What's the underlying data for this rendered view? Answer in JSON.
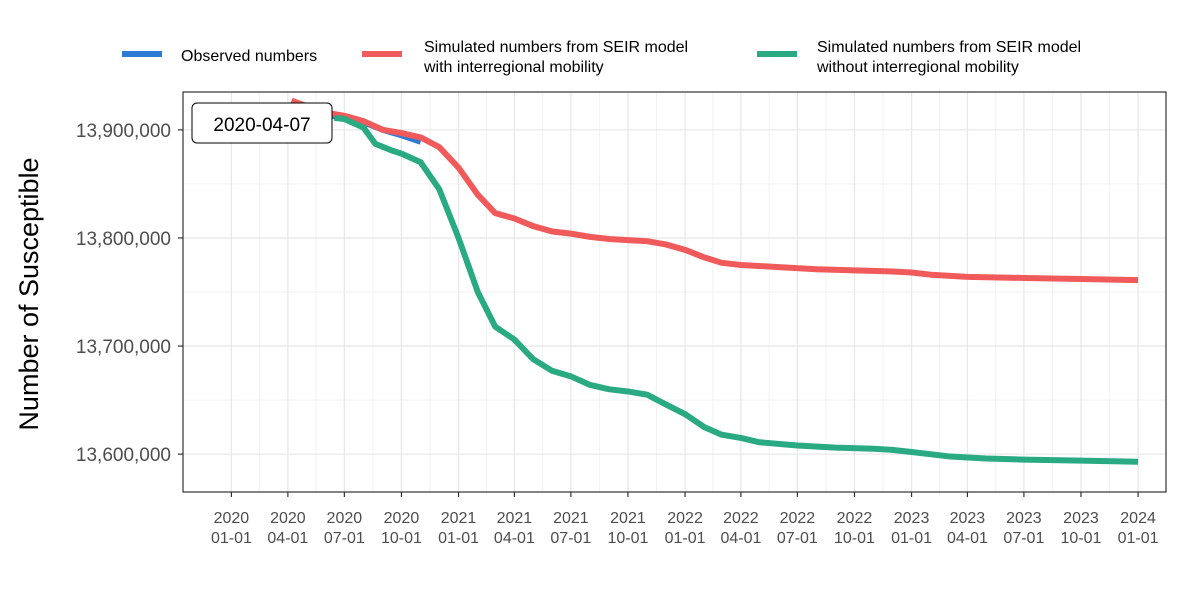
{
  "chart_data": {
    "type": "line",
    "title": "",
    "xlabel": "",
    "ylabel": "Number of Susceptible",
    "ylim": [
      13565000,
      13935000
    ],
    "xlim": [
      "2019-10-15",
      "2024-02-15"
    ],
    "grid": true,
    "legend_position": "top",
    "x_ticks": [
      {
        "date": "2020-01-01",
        "line1": "2020",
        "line2": "01-01"
      },
      {
        "date": "2020-04-01",
        "line1": "2020",
        "line2": "04-01"
      },
      {
        "date": "2020-07-01",
        "line1": "2020",
        "line2": "07-01"
      },
      {
        "date": "2020-10-01",
        "line1": "2020",
        "line2": "10-01"
      },
      {
        "date": "2021-01-01",
        "line1": "2021",
        "line2": "01-01"
      },
      {
        "date": "2021-04-01",
        "line1": "2021",
        "line2": "04-01"
      },
      {
        "date": "2021-07-01",
        "line1": "2021",
        "line2": "07-01"
      },
      {
        "date": "2021-10-01",
        "line1": "2021",
        "line2": "10-01"
      },
      {
        "date": "2022-01-01",
        "line1": "2022",
        "line2": "01-01"
      },
      {
        "date": "2022-04-01",
        "line1": "2022",
        "line2": "04-01"
      },
      {
        "date": "2022-07-01",
        "line1": "2022",
        "line2": "07-01"
      },
      {
        "date": "2022-10-01",
        "line1": "2022",
        "line2": "10-01"
      },
      {
        "date": "2023-01-01",
        "line1": "2023",
        "line2": "01-01"
      },
      {
        "date": "2023-04-01",
        "line1": "2023",
        "line2": "04-01"
      },
      {
        "date": "2023-07-01",
        "line1": "2023",
        "line2": "07-01"
      },
      {
        "date": "2023-10-01",
        "line1": "2023",
        "line2": "10-01"
      },
      {
        "date": "2024-01-01",
        "line1": "2024",
        "line2": "01-01"
      }
    ],
    "y_ticks": [
      {
        "value": 13600000,
        "label": "13,600,000"
      },
      {
        "value": 13700000,
        "label": "13,700,000"
      },
      {
        "value": 13800000,
        "label": "13,800,000"
      },
      {
        "value": 13900000,
        "label": "13,900,000"
      }
    ],
    "annotation": {
      "text": "2020-04-07",
      "date": "2020-04-07"
    },
    "series": [
      {
        "name": "Observed numbers",
        "color": "#2e7bd6",
        "points": [
          [
            "2020-04-07",
            13927000
          ],
          [
            "2020-05-01",
            13920000
          ],
          [
            "2020-06-01",
            13914000
          ],
          [
            "2020-07-01",
            13911000
          ],
          [
            "2020-08-01",
            13907000
          ],
          [
            "2020-09-01",
            13900000
          ],
          [
            "2020-10-01",
            13895000
          ],
          [
            "2020-11-01",
            13889000
          ]
        ]
      },
      {
        "name": "Simulated numbers from SEIR model\nwith interregional mobility",
        "color": "#f05a5a",
        "points": [
          [
            "2020-04-07",
            13927000
          ],
          [
            "2020-05-01",
            13922000
          ],
          [
            "2020-06-01",
            13916000
          ],
          [
            "2020-07-01",
            13913000
          ],
          [
            "2020-08-01",
            13908000
          ],
          [
            "2020-09-01",
            13900000
          ],
          [
            "2020-10-01",
            13897000
          ],
          [
            "2020-11-01",
            13893000
          ],
          [
            "2020-12-01",
            13884000
          ],
          [
            "2021-01-01",
            13865000
          ],
          [
            "2021-02-01",
            13840000
          ],
          [
            "2021-03-01",
            13823000
          ],
          [
            "2021-04-01",
            13818000
          ],
          [
            "2021-05-01",
            13811000
          ],
          [
            "2021-06-01",
            13806000
          ],
          [
            "2021-07-01",
            13804000
          ],
          [
            "2021-08-01",
            13801000
          ],
          [
            "2021-09-01",
            13799000
          ],
          [
            "2021-10-01",
            13798000
          ],
          [
            "2021-11-01",
            13797000
          ],
          [
            "2021-12-01",
            13794000
          ],
          [
            "2022-01-01",
            13789000
          ],
          [
            "2022-02-01",
            13782000
          ],
          [
            "2022-03-01",
            13777000
          ],
          [
            "2022-04-01",
            13775000
          ],
          [
            "2022-06-01",
            13773000
          ],
          [
            "2022-08-01",
            13771000
          ],
          [
            "2022-10-01",
            13770000
          ],
          [
            "2022-12-01",
            13769000
          ],
          [
            "2023-01-01",
            13768000
          ],
          [
            "2023-02-01",
            13766000
          ],
          [
            "2023-04-01",
            13764000
          ],
          [
            "2023-07-01",
            13763000
          ],
          [
            "2023-10-01",
            13762000
          ],
          [
            "2024-01-01",
            13761000
          ]
        ]
      },
      {
        "name": "Simulated numbers from SEIR model\nwithout interregional mobility",
        "color": "#2aaa82",
        "points": [
          [
            "2020-06-15",
            13911000
          ],
          [
            "2020-07-01",
            13910000
          ],
          [
            "2020-08-01",
            13902000
          ],
          [
            "2020-08-20",
            13887000
          ],
          [
            "2020-09-15",
            13881000
          ],
          [
            "2020-10-01",
            13878000
          ],
          [
            "2020-11-01",
            13870000
          ],
          [
            "2020-12-01",
            13845000
          ],
          [
            "2021-01-01",
            13800000
          ],
          [
            "2021-02-01",
            13750000
          ],
          [
            "2021-03-01",
            13718000
          ],
          [
            "2021-04-01",
            13706000
          ],
          [
            "2021-05-01",
            13688000
          ],
          [
            "2021-06-01",
            13677000
          ],
          [
            "2021-07-01",
            13672000
          ],
          [
            "2021-08-01",
            13664000
          ],
          [
            "2021-09-01",
            13660000
          ],
          [
            "2021-10-01",
            13658000
          ],
          [
            "2021-11-01",
            13655000
          ],
          [
            "2021-12-01",
            13646000
          ],
          [
            "2022-01-01",
            13637000
          ],
          [
            "2022-02-01",
            13625000
          ],
          [
            "2022-03-01",
            13618000
          ],
          [
            "2022-04-01",
            13615000
          ],
          [
            "2022-05-01",
            13611000
          ],
          [
            "2022-07-01",
            13608000
          ],
          [
            "2022-09-01",
            13606000
          ],
          [
            "2022-11-01",
            13605000
          ],
          [
            "2022-12-01",
            13604000
          ],
          [
            "2023-01-01",
            13602000
          ],
          [
            "2023-03-01",
            13598000
          ],
          [
            "2023-05-01",
            13596000
          ],
          [
            "2023-07-01",
            13595000
          ],
          [
            "2023-10-01",
            13594000
          ],
          [
            "2024-01-01",
            13593000
          ]
        ]
      }
    ]
  }
}
